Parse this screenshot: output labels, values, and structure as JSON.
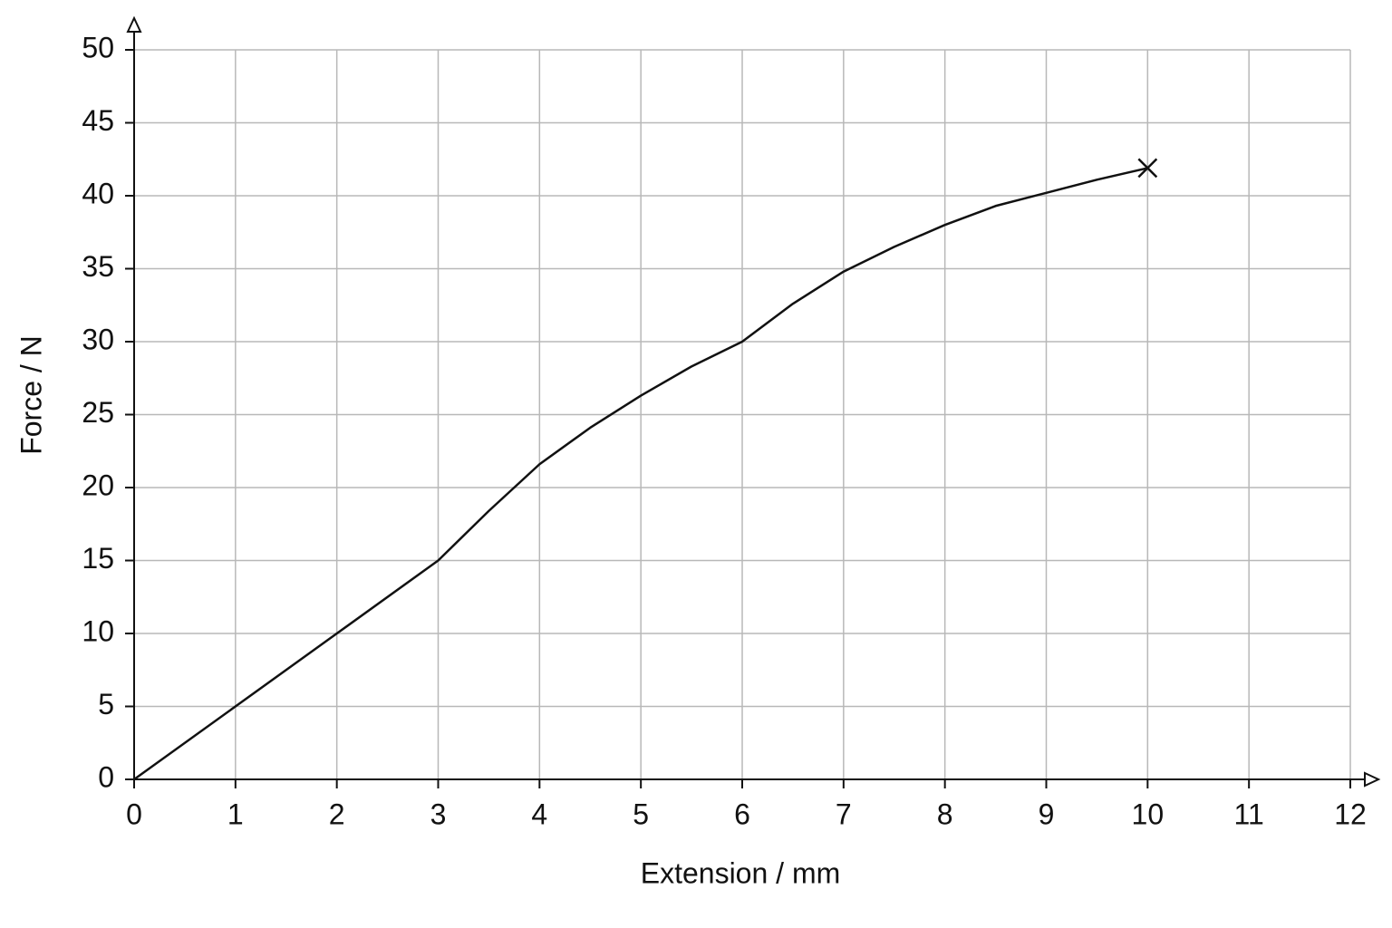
{
  "chart_data": {
    "type": "line",
    "x_label": "Extension / mm",
    "y_label": "Force / N",
    "x": [
      0,
      1,
      2,
      3,
      3.5,
      4,
      4.5,
      5,
      5.5,
      6,
      6.5,
      7,
      7.5,
      8,
      8.5,
      9,
      9.5,
      10
    ],
    "values": [
      0,
      5,
      10,
      15,
      18.4,
      21.6,
      24.1,
      26.3,
      28.3,
      30,
      32.6,
      34.8,
      36.5,
      38,
      39.3,
      40.2,
      41.1,
      41.9
    ],
    "color": "#111111",
    "end_marker": "x",
    "xlim": [
      0,
      12
    ],
    "ylim": [
      0,
      50
    ],
    "xticks": [
      0,
      1,
      2,
      3,
      4,
      5,
      6,
      7,
      8,
      9,
      10,
      11,
      12
    ],
    "yticks": [
      0,
      5,
      10,
      15,
      20,
      25,
      30,
      35,
      40,
      45,
      50
    ],
    "grid": true,
    "grid_color": "#b8b8b8"
  }
}
